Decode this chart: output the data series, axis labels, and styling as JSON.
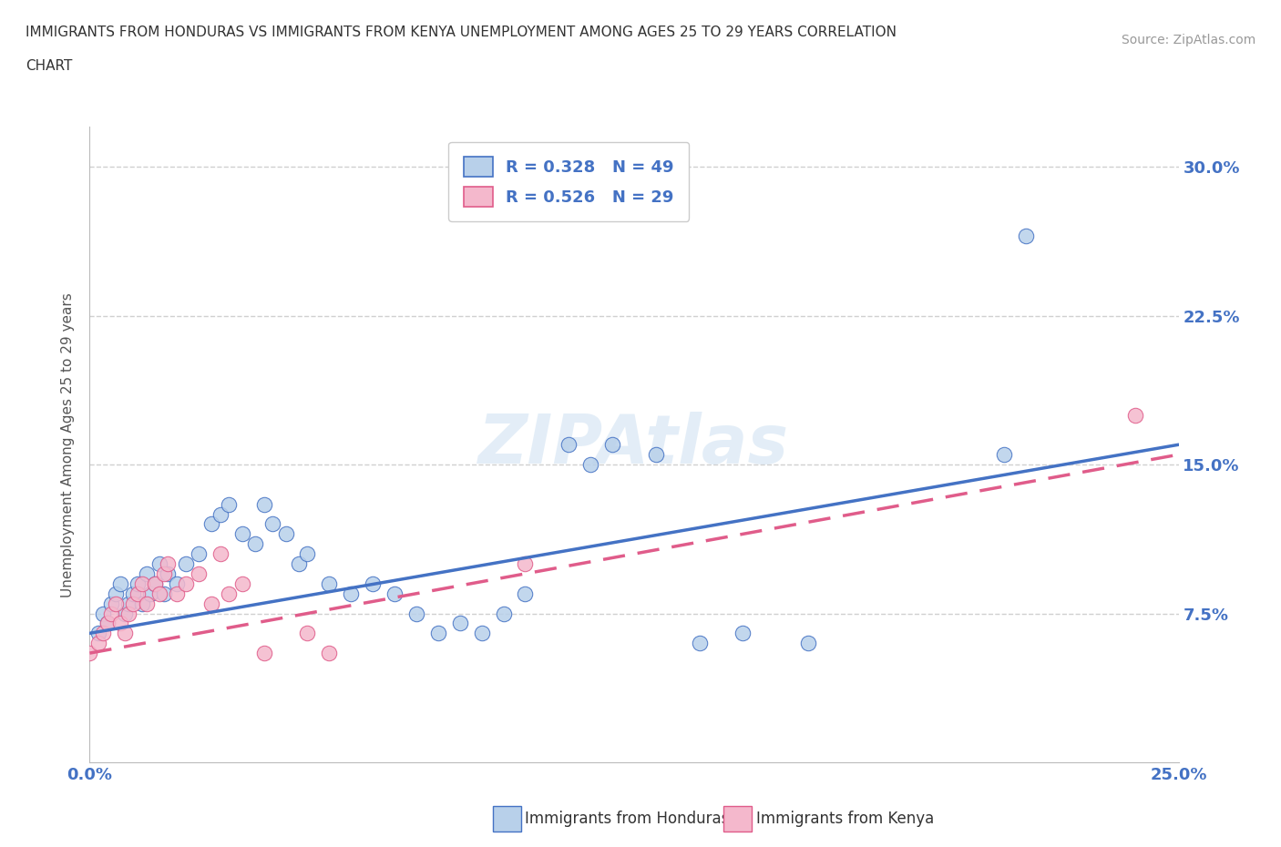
{
  "title_line1": "IMMIGRANTS FROM HONDURAS VS IMMIGRANTS FROM KENYA UNEMPLOYMENT AMONG AGES 25 TO 29 YEARS CORRELATION",
  "title_line2": "CHART",
  "source_text": "Source: ZipAtlas.com",
  "ylabel": "Unemployment Among Ages 25 to 29 years",
  "xlim": [
    0.0,
    0.25
  ],
  "ylim": [
    0.0,
    0.32
  ],
  "xticks": [
    0.0,
    0.05,
    0.1,
    0.15,
    0.2,
    0.25
  ],
  "yticks": [
    0.0,
    0.075,
    0.15,
    0.225,
    0.3
  ],
  "xtick_labels": [
    "0.0%",
    "",
    "",
    "",
    "",
    "25.0%"
  ],
  "ytick_labels": [
    "",
    "7.5%",
    "15.0%",
    "22.5%",
    "30.0%"
  ],
  "background_color": "#ffffff",
  "watermark": "ZIPAtlas",
  "honduras_color": "#b8d0ea",
  "kenya_color": "#f4b8cc",
  "honduras_line_color": "#4472c4",
  "kenya_line_color": "#e05c8a",
  "grid_color": "#d0d0d0",
  "honduras_scatter": [
    [
      0.002,
      0.065
    ],
    [
      0.003,
      0.075
    ],
    [
      0.004,
      0.07
    ],
    [
      0.005,
      0.08
    ],
    [
      0.006,
      0.085
    ],
    [
      0.007,
      0.09
    ],
    [
      0.008,
      0.075
    ],
    [
      0.009,
      0.08
    ],
    [
      0.01,
      0.085
    ],
    [
      0.011,
      0.09
    ],
    [
      0.012,
      0.08
    ],
    [
      0.013,
      0.095
    ],
    [
      0.014,
      0.085
    ],
    [
      0.015,
      0.09
    ],
    [
      0.016,
      0.1
    ],
    [
      0.017,
      0.085
    ],
    [
      0.018,
      0.095
    ],
    [
      0.02,
      0.09
    ],
    [
      0.022,
      0.1
    ],
    [
      0.025,
      0.105
    ],
    [
      0.028,
      0.12
    ],
    [
      0.03,
      0.125
    ],
    [
      0.032,
      0.13
    ],
    [
      0.035,
      0.115
    ],
    [
      0.038,
      0.11
    ],
    [
      0.04,
      0.13
    ],
    [
      0.042,
      0.12
    ],
    [
      0.045,
      0.115
    ],
    [
      0.048,
      0.1
    ],
    [
      0.05,
      0.105
    ],
    [
      0.055,
      0.09
    ],
    [
      0.06,
      0.085
    ],
    [
      0.065,
      0.09
    ],
    [
      0.07,
      0.085
    ],
    [
      0.075,
      0.075
    ],
    [
      0.08,
      0.065
    ],
    [
      0.085,
      0.07
    ],
    [
      0.09,
      0.065
    ],
    [
      0.095,
      0.075
    ],
    [
      0.1,
      0.085
    ],
    [
      0.11,
      0.16
    ],
    [
      0.115,
      0.15
    ],
    [
      0.12,
      0.16
    ],
    [
      0.13,
      0.155
    ],
    [
      0.14,
      0.06
    ],
    [
      0.15,
      0.065
    ],
    [
      0.165,
      0.06
    ],
    [
      0.21,
      0.155
    ],
    [
      0.215,
      0.265
    ]
  ],
  "kenya_scatter": [
    [
      0.0,
      0.055
    ],
    [
      0.002,
      0.06
    ],
    [
      0.003,
      0.065
    ],
    [
      0.004,
      0.07
    ],
    [
      0.005,
      0.075
    ],
    [
      0.006,
      0.08
    ],
    [
      0.007,
      0.07
    ],
    [
      0.008,
      0.065
    ],
    [
      0.009,
      0.075
    ],
    [
      0.01,
      0.08
    ],
    [
      0.011,
      0.085
    ],
    [
      0.012,
      0.09
    ],
    [
      0.013,
      0.08
    ],
    [
      0.015,
      0.09
    ],
    [
      0.016,
      0.085
    ],
    [
      0.017,
      0.095
    ],
    [
      0.018,
      0.1
    ],
    [
      0.02,
      0.085
    ],
    [
      0.022,
      0.09
    ],
    [
      0.025,
      0.095
    ],
    [
      0.028,
      0.08
    ],
    [
      0.03,
      0.105
    ],
    [
      0.032,
      0.085
    ],
    [
      0.035,
      0.09
    ],
    [
      0.04,
      0.055
    ],
    [
      0.05,
      0.065
    ],
    [
      0.055,
      0.055
    ],
    [
      0.1,
      0.1
    ],
    [
      0.24,
      0.175
    ]
  ],
  "honduras_trendline": [
    0.0,
    0.25,
    0.065,
    0.16
  ],
  "kenya_trendline": [
    0.0,
    0.25,
    0.055,
    0.155
  ]
}
